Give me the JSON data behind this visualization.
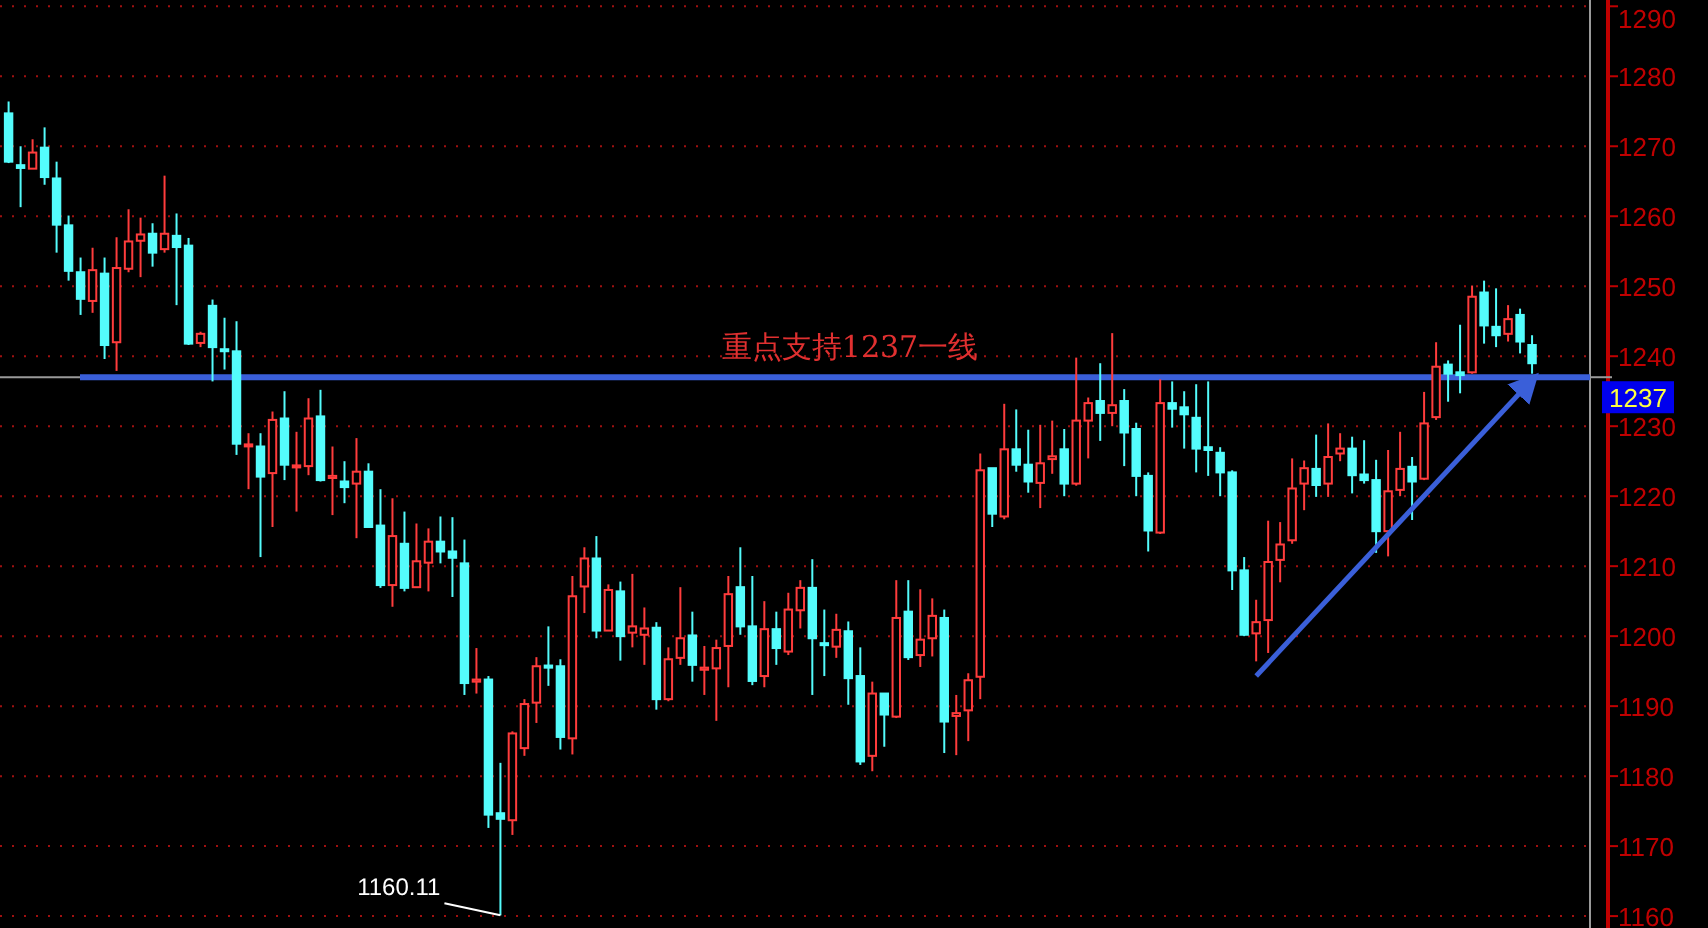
{
  "chart_data": {
    "type": "candlestick",
    "categories": [
      null,
      null,
      null,
      null,
      null,
      null,
      null,
      null,
      null,
      null,
      null,
      null,
      null,
      null,
      null,
      null,
      null,
      null,
      null,
      null,
      null,
      null,
      null,
      null,
      null,
      null,
      null,
      null,
      null,
      null,
      null,
      null,
      null,
      null,
      null,
      null,
      null,
      null,
      null,
      null,
      null,
      null,
      null,
      null,
      null,
      null,
      null,
      null,
      null,
      null,
      null,
      null,
      null,
      null,
      null,
      null,
      null,
      null,
      null,
      null,
      null,
      null,
      null,
      null,
      null,
      null,
      null,
      null,
      null,
      null,
      null,
      null,
      null,
      null,
      null,
      null,
      null,
      null,
      null,
      null,
      null,
      null,
      null,
      null,
      null,
      null,
      null,
      null,
      null,
      null,
      null,
      null,
      null,
      null,
      null,
      null,
      null,
      null,
      null,
      null,
      null,
      null,
      null,
      null,
      null,
      null,
      null,
      null,
      null,
      null,
      null,
      null,
      null,
      null,
      null,
      null,
      null,
      null,
      null,
      null,
      null,
      null,
      null,
      null,
      null,
      null,
      null,
      null
    ],
    "ohlc": [
      [
        1274.7,
        1276.4,
        1267.6,
        1267.8
      ],
      [
        1267.3,
        1270,
        1261.3,
        1266.9
      ],
      [
        1266.8,
        1271,
        1266.8,
        1269.1
      ],
      [
        1269.8,
        1272.7,
        1264.5,
        1265.6
      ],
      [
        1265.4,
        1267.8,
        1254.8,
        1258.8
      ],
      [
        1258.7,
        1260.1,
        1250.8,
        1252.2
      ],
      [
        1252,
        1254.1,
        1245.9,
        1248.2
      ],
      [
        1247.9,
        1255.5,
        1246.2,
        1252.3
      ],
      [
        1251.8,
        1254.1,
        1239.6,
        1241.6
      ],
      [
        1242,
        1257,
        1237.9,
        1252.6
      ],
      [
        1252.5,
        1261,
        1252,
        1256.4
      ],
      [
        1256.5,
        1259.8,
        1251.3,
        1257.4
      ],
      [
        1257.5,
        1259,
        1252.8,
        1254.8
      ],
      [
        1255.3,
        1265.8,
        1254.8,
        1257.5
      ],
      [
        1257.2,
        1260.4,
        1247.3,
        1255.6
      ],
      [
        1255.8,
        1256.9,
        1241.6,
        1241.8
      ],
      [
        1241.9,
        1243.5,
        1241.3,
        1243.2
      ],
      [
        1247.2,
        1248.1,
        1236.4,
        1241.3
      ],
      [
        1241,
        1245.5,
        1238.1,
        1240.8
      ],
      [
        1240.7,
        1245,
        1225.9,
        1227.5
      ],
      [
        1227.2,
        1229,
        1221,
        1227.4
      ],
      [
        1227.1,
        1229,
        1211.3,
        1222.8
      ],
      [
        1223.3,
        1232.1,
        1215.6,
        1230.9
      ],
      [
        1231.1,
        1235,
        1222.3,
        1224.5
      ],
      [
        1224.2,
        1229.2,
        1217.8,
        1224.4
      ],
      [
        1224.3,
        1234,
        1223,
        1231.1
      ],
      [
        1231.4,
        1235.2,
        1222.1,
        1222.3
      ],
      [
        1222.6,
        1227.1,
        1217.3,
        1222.9
      ],
      [
        1222.1,
        1225,
        1219,
        1221.3
      ],
      [
        1221.8,
        1228.3,
        1214,
        1223.5
      ],
      [
        1223.5,
        1224.7,
        1215.6,
        1215.6
      ],
      [
        1215.8,
        1221,
        1206.9,
        1207.3
      ],
      [
        1207.3,
        1219.7,
        1204.2,
        1214.3
      ],
      [
        1213.2,
        1217.8,
        1206.4,
        1206.9
      ],
      [
        1207,
        1216.1,
        1207,
        1210.7
      ],
      [
        1210.5,
        1215.4,
        1206.4,
        1213.5
      ],
      [
        1213.5,
        1217.1,
        1210.4,
        1212.1
      ],
      [
        1212.1,
        1217,
        1205.6,
        1211.2
      ],
      [
        1210.4,
        1213.8,
        1191.6,
        1193.3
      ],
      [
        1193.5,
        1198.3,
        1191.8,
        1193.8
      ],
      [
        1193.8,
        1194.3,
        1172.6,
        1174.5
      ],
      [
        1174.7,
        1181.9,
        1160.11,
        1173.9
      ],
      [
        1173.7,
        1186.4,
        1171.6,
        1186.1
      ],
      [
        1184,
        1191,
        1182.9,
        1190.3
      ],
      [
        1190.5,
        1197,
        1187.6,
        1195.7
      ],
      [
        1195.8,
        1201.4,
        1192.9,
        1195.5
      ],
      [
        1195.7,
        1196.7,
        1183.8,
        1185.6
      ],
      [
        1185.4,
        1208.6,
        1183.1,
        1205.7
      ],
      [
        1207.1,
        1212.7,
        1203.3,
        1211.1
      ],
      [
        1211.1,
        1214.3,
        1199.7,
        1200.8
      ],
      [
        1200.8,
        1207.4,
        1200.8,
        1206.6
      ],
      [
        1206.4,
        1207.8,
        1196.5,
        1200
      ],
      [
        1200.5,
        1208.9,
        1198.4,
        1201.4
      ],
      [
        1200.2,
        1204.1,
        1195.9,
        1201.1
      ],
      [
        1201.2,
        1202,
        1189.5,
        1191
      ],
      [
        1191,
        1198.4,
        1190.7,
        1196.7
      ],
      [
        1196.9,
        1207,
        1195.9,
        1199.7
      ],
      [
        1200.1,
        1203.5,
        1193.5,
        1195.9
      ],
      [
        1195.2,
        1198.6,
        1191.6,
        1195.5
      ],
      [
        1195.4,
        1199.5,
        1187.9,
        1198.3
      ],
      [
        1198.6,
        1208.6,
        1192.7,
        1206
      ],
      [
        1207,
        1212.7,
        1200.2,
        1201.4
      ],
      [
        1201.4,
        1208.6,
        1193,
        1193.6
      ],
      [
        1194.3,
        1205,
        1192.7,
        1201
      ],
      [
        1201,
        1203.5,
        1195.9,
        1198.3
      ],
      [
        1197.8,
        1206.2,
        1197.3,
        1203.8
      ],
      [
        1203.7,
        1208,
        1201.1,
        1206.9
      ],
      [
        1206.9,
        1211,
        1191.6,
        1199.7
      ],
      [
        1199,
        1203.8,
        1194.3,
        1198.8
      ],
      [
        1198.5,
        1203.2,
        1196.9,
        1200.9
      ],
      [
        1200.7,
        1202.1,
        1190.2,
        1194
      ],
      [
        1194.3,
        1198.4,
        1181.6,
        1182.1
      ],
      [
        1182.9,
        1193.5,
        1180.7,
        1191.8
      ],
      [
        1191.8,
        1191.8,
        1184.2,
        1188.8
      ],
      [
        1188.5,
        1208,
        1188.3,
        1202.6
      ],
      [
        1203.5,
        1208,
        1196.6,
        1197
      ],
      [
        1197.3,
        1206.7,
        1195.6,
        1199.5
      ],
      [
        1199.7,
        1205.4,
        1197.1,
        1202.9
      ],
      [
        1202.6,
        1203.8,
        1183.3,
        1187.8
      ],
      [
        1188.6,
        1191.6,
        1183,
        1189
      ],
      [
        1189.4,
        1194.7,
        1185,
        1193.7
      ],
      [
        1194.2,
        1226.1,
        1191,
        1223.7
      ],
      [
        1224,
        1224,
        1215.6,
        1217.5
      ],
      [
        1217.1,
        1233.2,
        1216.7,
        1226.7
      ],
      [
        1226.7,
        1232.4,
        1223.5,
        1224.5
      ],
      [
        1224.5,
        1229.5,
        1220.5,
        1222.1
      ],
      [
        1221.9,
        1230.2,
        1218.3,
        1224.7
      ],
      [
        1225.3,
        1230.8,
        1223.2,
        1225.7
      ],
      [
        1226.7,
        1229.6,
        1220,
        1221.8
      ],
      [
        1221.8,
        1239.8,
        1221.5,
        1230.8
      ],
      [
        1230.8,
        1234.1,
        1225.4,
        1233.3
      ],
      [
        1233.6,
        1239,
        1227.9,
        1231.9
      ],
      [
        1231.9,
        1243.3,
        1230,
        1233
      ],
      [
        1233.6,
        1235.3,
        1224.3,
        1229.1
      ],
      [
        1229.6,
        1230.5,
        1220,
        1222.9
      ],
      [
        1222.9,
        1223.4,
        1212.1,
        1215.1
      ],
      [
        1214.8,
        1236.7,
        1214.6,
        1233.3
      ],
      [
        1233.3,
        1236.4,
        1229.8,
        1232.5
      ],
      [
        1232.7,
        1235,
        1226.8,
        1231.7
      ],
      [
        1231.2,
        1236,
        1223.4,
        1226.8
      ],
      [
        1227,
        1236.4,
        1222.9,
        1226.6
      ],
      [
        1226.2,
        1227,
        1220,
        1223.4
      ],
      [
        1223.4,
        1223.7,
        1206.6,
        1209.4
      ],
      [
        1209.4,
        1211.3,
        1200,
        1200.2
      ],
      [
        1200.4,
        1205.2,
        1196.4,
        1202
      ],
      [
        1202.3,
        1216.5,
        1197.6,
        1210.6
      ],
      [
        1210.9,
        1216.3,
        1207.7,
        1213.1
      ],
      [
        1213.7,
        1225.4,
        1213.2,
        1221.1
      ],
      [
        1221.8,
        1225.1,
        1218,
        1224
      ],
      [
        1223.9,
        1228.8,
        1219.9,
        1221.6
      ],
      [
        1221.8,
        1230.4,
        1219.9,
        1225.6
      ],
      [
        1226.1,
        1229,
        1225,
        1226.8
      ],
      [
        1226.8,
        1228.5,
        1220.4,
        1223
      ],
      [
        1223.1,
        1228,
        1221.8,
        1222.3
      ],
      [
        1222.3,
        1225.2,
        1211.9,
        1215
      ],
      [
        1215,
        1226.6,
        1211.4,
        1220.7
      ],
      [
        1220.9,
        1229.2,
        1220,
        1223.9
      ],
      [
        1224.2,
        1225.6,
        1216.6,
        1222.1
      ],
      [
        1222.5,
        1234.9,
        1222.3,
        1230.4
      ],
      [
        1231.3,
        1242,
        1230.9,
        1238.5
      ],
      [
        1238.8,
        1239.4,
        1233.5,
        1237.5
      ],
      [
        1237.7,
        1244.5,
        1234.7,
        1237.3
      ],
      [
        1237.7,
        1250.1,
        1237.5,
        1248.5
      ],
      [
        1249.1,
        1250.8,
        1241.8,
        1244.4
      ],
      [
        1244.2,
        1249.7,
        1241.3,
        1243
      ],
      [
        1243.2,
        1247.3,
        1242.1,
        1245.3
      ],
      [
        1245.9,
        1246.8,
        1240.4,
        1242.1
      ],
      [
        1241.6,
        1243,
        1237.5,
        1239
      ]
    ],
    "colors": [
      "#54fcfc",
      "#54fcfc",
      "#ff3c3c",
      "#54fcfc",
      "#54fcfc",
      "#54fcfc",
      "#54fcfc",
      "#ff3c3c",
      "#54fcfc",
      "#ff3c3c",
      "#ff3c3c",
      "#ff3c3c",
      "#54fcfc",
      "#ff3c3c",
      "#54fcfc",
      "#54fcfc",
      "#ff3c3c",
      "#54fcfc",
      "#54fcfc",
      "#54fcfc",
      "#ff3c3c",
      "#54fcfc",
      "#ff3c3c",
      "#54fcfc",
      "#ff3c3c",
      "#ff3c3c",
      "#54fcfc",
      "#ff3c3c",
      "#54fcfc",
      "#ff3c3c",
      "#54fcfc",
      "#54fcfc",
      "#ff3c3c",
      "#54fcfc",
      "#ff3c3c",
      "#ff3c3c",
      "#54fcfc",
      "#54fcfc",
      "#54fcfc",
      "#ff3c3c",
      "#54fcfc",
      "#54fcfc",
      "#ff3c3c",
      "#ff3c3c",
      "#ff3c3c",
      "#54fcfc",
      "#54fcfc",
      "#ff3c3c",
      "#ff3c3c",
      "#54fcfc",
      "#ff3c3c",
      "#54fcfc",
      "#ff3c3c",
      "#ff3c3c",
      "#54fcfc",
      "#ff3c3c",
      "#ff3c3c",
      "#54fcfc",
      "#ff3c3c",
      "#ff3c3c",
      "#ff3c3c",
      "#54fcfc",
      "#54fcfc",
      "#ff3c3c",
      "#54fcfc",
      "#ff3c3c",
      "#ff3c3c",
      "#54fcfc",
      "#54fcfc",
      "#ff3c3c",
      "#54fcfc",
      "#54fcfc",
      "#ff3c3c",
      "#54fcfc",
      "#ff3c3c",
      "#54fcfc",
      "#ff3c3c",
      "#ff3c3c",
      "#54fcfc",
      "#ff3c3c",
      "#ff3c3c",
      "#ff3c3c",
      "#54fcfc",
      "#ff3c3c",
      "#54fcfc",
      "#54fcfc",
      "#ff3c3c",
      "#ff3c3c",
      "#54fcfc",
      "#ff3c3c",
      "#ff3c3c",
      "#54fcfc",
      "#ff3c3c",
      "#54fcfc",
      "#54fcfc",
      "#54fcfc",
      "#ff3c3c",
      "#54fcfc",
      "#54fcfc",
      "#54fcfc",
      "#54fcfc",
      "#54fcfc",
      "#54fcfc",
      "#54fcfc",
      "#ff3c3c",
      "#ff3c3c",
      "#ff3c3c",
      "#ff3c3c",
      "#ff3c3c",
      "#54fcfc",
      "#ff3c3c",
      "#ff3c3c",
      "#54fcfc",
      "#54fcfc",
      "#54fcfc",
      "#ff3c3c",
      "#ff3c3c",
      "#54fcfc",
      "#ff3c3c",
      "#ff3c3c",
      "#54fcfc",
      "#54fcfc",
      "#ff3c3c",
      "#54fcfc",
      "#54fcfc",
      "#ff3c3c",
      "#54fcfc",
      "#54fcfc"
    ],
    "series": [
      {
        "type": "line",
        "values": [
          null,
          null,
          null,
          null,
          null,
          null,
          null,
          null,
          null,
          null,
          null,
          null,
          null,
          null,
          null,
          null,
          null,
          null,
          null,
          null,
          null,
          null,
          null,
          null,
          null,
          null,
          null,
          null,
          null,
          null,
          null,
          null,
          null,
          null,
          null,
          null,
          null,
          null,
          null,
          null,
          null,
          null,
          null,
          null,
          null,
          null,
          null,
          null,
          null,
          null,
          null,
          null,
          null,
          null,
          null,
          null,
          null,
          null,
          null,
          null,
          null,
          null,
          null,
          null,
          null,
          null,
          null,
          null,
          null,
          null,
          null,
          null,
          null,
          null,
          null,
          null,
          null,
          null,
          null,
          null,
          null,
          null,
          null,
          null,
          null,
          null,
          null,
          null,
          null,
          null,
          null,
          null,
          null,
          null,
          null,
          null,
          null,
          null,
          null,
          null,
          null,
          null,
          null,
          null,
          1194.3,
          null,
          null,
          null,
          null,
          null,
          null,
          null,
          null,
          null,
          null,
          null,
          null,
          null,
          null,
          null,
          null,
          null,
          null,
          null,
          null,
          null,
          null,
          1236.6
        ],
        "color": "#3a5fd9"
      }
    ],
    "ylim": [
      1158.3,
      1290.9
    ],
    "yticks": [
      1160,
      1170,
      1180,
      1190,
      1200,
      1210,
      1220,
      1230,
      1240,
      1250,
      1260,
      1270,
      1280,
      1290
    ],
    "grid": "y",
    "ref_lines": [
      {
        "axis": "y",
        "value": 1237,
        "label": "1237",
        "color": "#9a9a9a"
      },
      {
        "axis": "y",
        "value": 1237,
        "label": "重点支持1237一线",
        "color": "#3a5fd9"
      }
    ],
    "annotations": [
      "1160.11"
    ]
  }
}
